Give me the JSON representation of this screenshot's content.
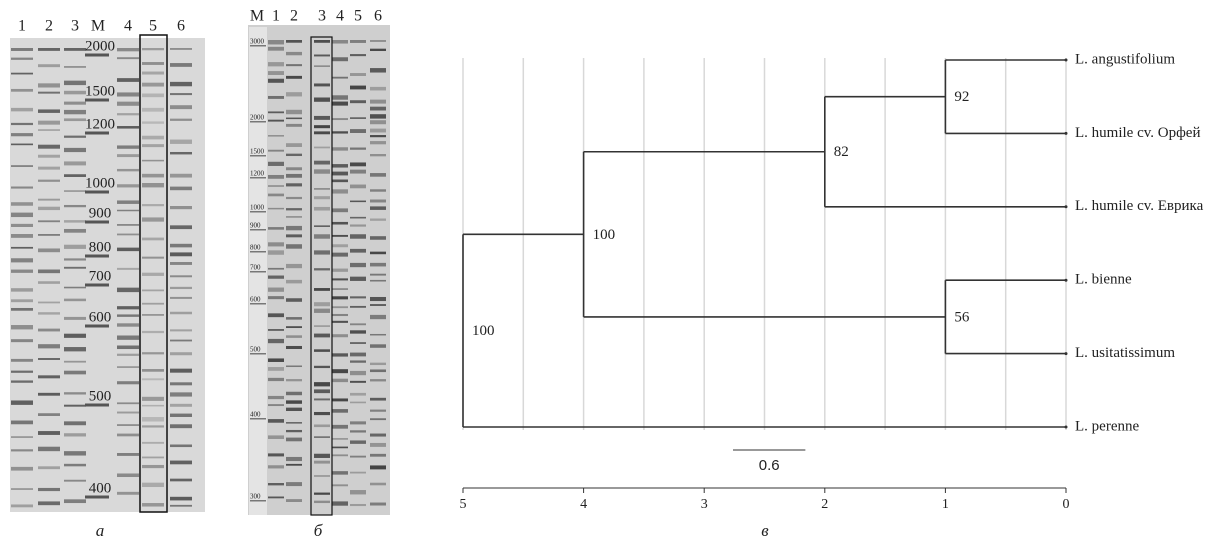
{
  "gel_a": {
    "lanes": [
      "1",
      "2",
      "3",
      "M",
      "4",
      "5",
      "6"
    ],
    "marker_labels": [
      2000,
      1500,
      1200,
      1000,
      900,
      800,
      700,
      600,
      500,
      400
    ],
    "caption": "а"
  },
  "gel_b": {
    "lanes": [
      "M",
      "1",
      "2",
      "3",
      "4",
      "5",
      "6"
    ],
    "marker_labels": [
      3000,
      2000,
      1500,
      1200,
      1000,
      900,
      800,
      700,
      600,
      500,
      400,
      300
    ],
    "caption": "б"
  },
  "chart_data": {
    "type": "dendrogram",
    "caption": "в",
    "xlim": [
      5,
      0
    ],
    "xticks": [
      5,
      4,
      3,
      2,
      1,
      0
    ],
    "gridlines": [
      5,
      4.5,
      4,
      3.5,
      3,
      2.5,
      2,
      1.5,
      1,
      0.5,
      0
    ],
    "scale_bar": 0.6,
    "tree": {
      "height": 5,
      "support": 100,
      "children": [
        {
          "height": 4,
          "support": 100,
          "children": [
            {
              "height": 2,
              "support": 82,
              "children": [
                {
                  "height": 1,
                  "support": 92,
                  "children": [
                    {
                      "name": "L. angustifolium"
                    },
                    {
                      "name": "L. humile cv. Орфей"
                    }
                  ]
                },
                {
                  "name": "L. humile cv. Еврика"
                }
              ]
            },
            {
              "height": 1,
              "support": 56,
              "children": [
                {
                  "name": "L. bienne"
                },
                {
                  "name": "L. usitatissimum"
                }
              ]
            }
          ]
        },
        {
          "name": "L. perenne"
        }
      ]
    }
  }
}
